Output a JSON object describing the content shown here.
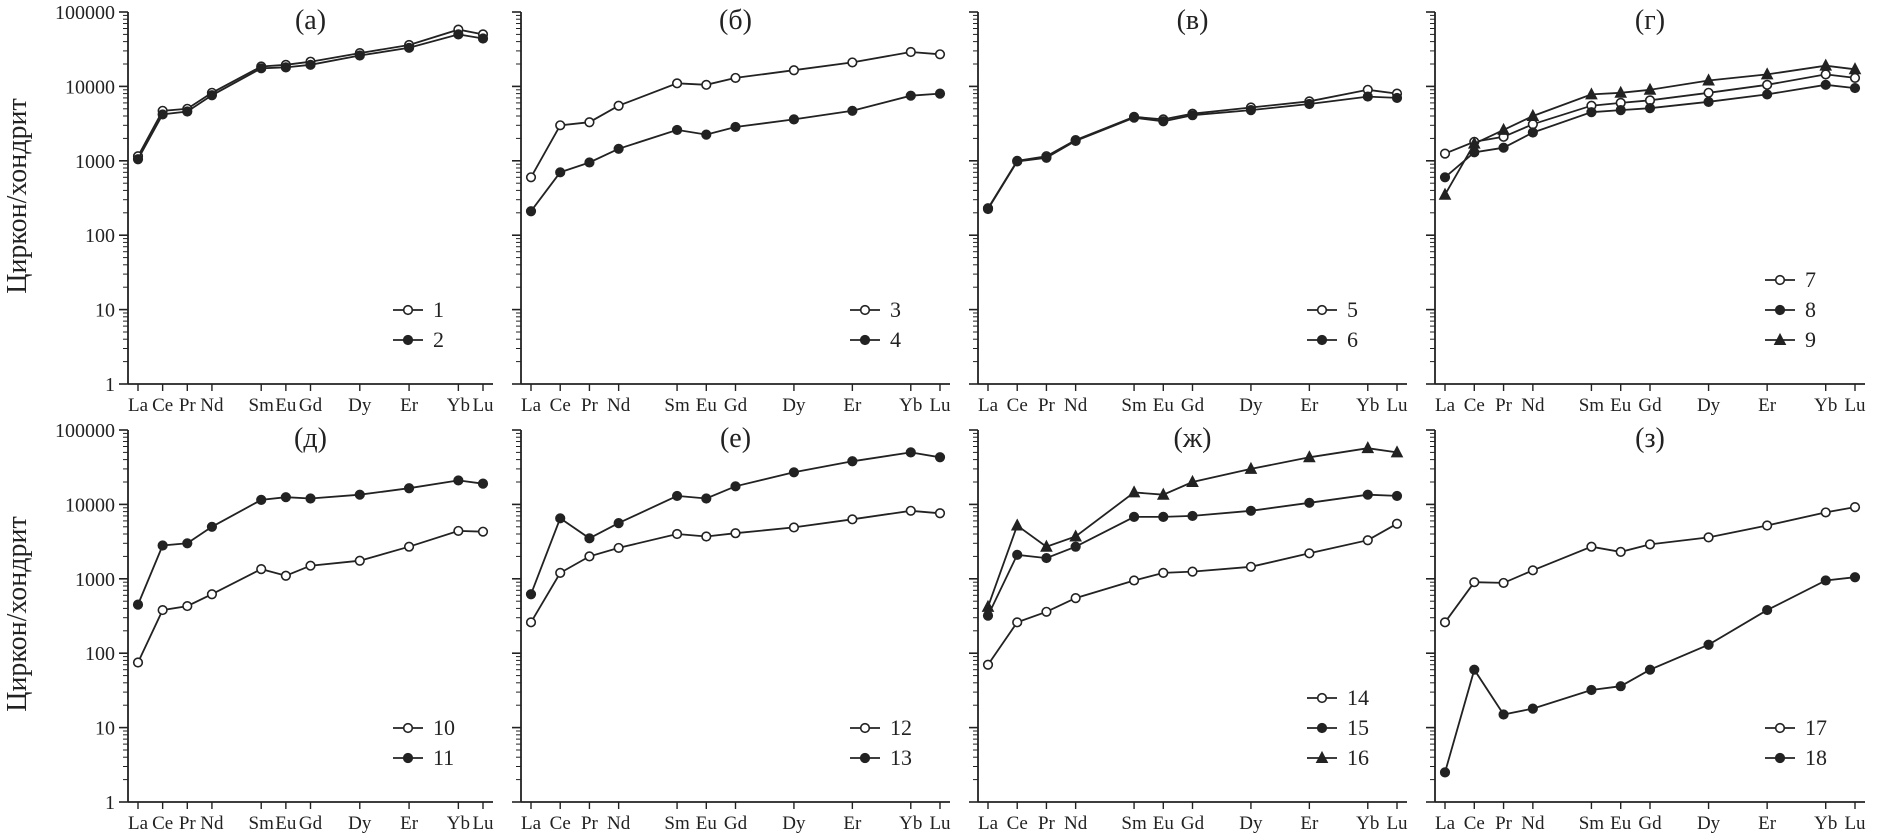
{
  "figure": {
    "ylabel": "Циркон/хондрит",
    "ylim": [
      1,
      100000
    ],
    "yscale": "log",
    "y_ticks": [
      "1",
      "10",
      "100",
      "1000",
      "10000",
      "100000"
    ],
    "x_categories": [
      "La",
      "Ce",
      "Pr",
      "Nd",
      "Sm",
      "Eu",
      "Gd",
      "Dy",
      "Er",
      "Yb",
      "Lu"
    ],
    "x_positions": [
      57,
      58,
      59,
      60,
      62,
      63,
      64,
      66,
      68,
      70,
      71
    ],
    "line_color": "#222222",
    "grid": "off",
    "legend_position": "bottom-right"
  },
  "chart_data": [
    {
      "type": "line",
      "panel": "(а)",
      "yscale": "log",
      "series": [
        {
          "name": "1",
          "marker": "open-circle",
          "values": [
            1150,
            4700,
            5000,
            8200,
            18500,
            19500,
            21500,
            28000,
            36000,
            58000,
            50000
          ]
        },
        {
          "name": "2",
          "marker": "filled-circle",
          "values": [
            1050,
            4200,
            4600,
            7600,
            17500,
            18000,
            19500,
            26000,
            33000,
            50000,
            44000
          ]
        }
      ]
    },
    {
      "type": "line",
      "panel": "(б)",
      "yscale": "log",
      "series": [
        {
          "name": "3",
          "marker": "open-circle",
          "values": [
            600,
            3000,
            3300,
            5500,
            11000,
            10500,
            13000,
            16500,
            21000,
            29000,
            27000
          ]
        },
        {
          "name": "4",
          "marker": "filled-circle",
          "values": [
            210,
            700,
            950,
            1450,
            2600,
            2250,
            2850,
            3600,
            4700,
            7500,
            8000
          ]
        }
      ]
    },
    {
      "type": "line",
      "panel": "(в)",
      "yscale": "log",
      "series": [
        {
          "name": "5",
          "marker": "open-circle",
          "values": [
            230,
            1000,
            1150,
            1900,
            3900,
            3600,
            4300,
            5200,
            6300,
            9000,
            8000
          ]
        },
        {
          "name": "6",
          "marker": "filled-circle",
          "values": [
            225,
            980,
            1100,
            1850,
            3800,
            3400,
            4100,
            4800,
            5800,
            7300,
            7000
          ]
        }
      ]
    },
    {
      "type": "line",
      "panel": "(г)",
      "yscale": "log",
      "series": [
        {
          "name": "7",
          "marker": "open-circle",
          "values": [
            1250,
            1800,
            2100,
            3100,
            5500,
            6000,
            6500,
            8200,
            10500,
            14500,
            13000
          ]
        },
        {
          "name": "8",
          "marker": "filled-circle",
          "values": [
            600,
            1300,
            1500,
            2400,
            4500,
            4800,
            5100,
            6200,
            7800,
            10500,
            9500
          ]
        },
        {
          "name": "9",
          "marker": "filled-triangle",
          "values": [
            350,
            1700,
            2600,
            4000,
            7800,
            8200,
            9000,
            12000,
            14500,
            19000,
            17000
          ]
        }
      ]
    },
    {
      "type": "line",
      "panel": "(д)",
      "yscale": "log",
      "series": [
        {
          "name": "10",
          "marker": "open-circle",
          "values": [
            75,
            380,
            430,
            620,
            1350,
            1100,
            1500,
            1750,
            2700,
            4400,
            4300
          ]
        },
        {
          "name": "11",
          "marker": "filled-circle",
          "values": [
            450,
            2800,
            3000,
            5000,
            11500,
            12500,
            12000,
            13500,
            16500,
            21000,
            19000
          ]
        }
      ]
    },
    {
      "type": "line",
      "panel": "(е)",
      "yscale": "log",
      "series": [
        {
          "name": "12",
          "marker": "open-circle",
          "values": [
            260,
            1200,
            2000,
            2600,
            4000,
            3700,
            4100,
            4900,
            6300,
            8200,
            7600
          ]
        },
        {
          "name": "13",
          "marker": "filled-circle",
          "values": [
            620,
            6500,
            3500,
            5600,
            13000,
            12000,
            17500,
            27000,
            38000,
            50000,
            43000
          ]
        }
      ]
    },
    {
      "type": "line",
      "panel": "(ж)",
      "yscale": "log",
      "series": [
        {
          "name": "14",
          "marker": "open-circle",
          "values": [
            70,
            260,
            360,
            550,
            950,
            1200,
            1250,
            1450,
            2200,
            3300,
            5500
          ]
        },
        {
          "name": "15",
          "marker": "filled-circle",
          "values": [
            320,
            2100,
            1900,
            2700,
            6800,
            6800,
            7000,
            8200,
            10500,
            13500,
            13000
          ]
        },
        {
          "name": "16",
          "marker": "filled-triangle",
          "values": [
            420,
            5200,
            2700,
            3700,
            14500,
            13500,
            20000,
            30000,
            43000,
            57000,
            50000
          ]
        }
      ]
    },
    {
      "type": "line",
      "panel": "(з)",
      "yscale": "log",
      "series": [
        {
          "name": "17",
          "marker": "open-circle",
          "values": [
            260,
            900,
            880,
            1300,
            2700,
            2300,
            2900,
            3600,
            5200,
            7800,
            9200
          ]
        },
        {
          "name": "18",
          "marker": "filled-circle",
          "values": [
            2.5,
            60,
            15,
            18,
            32,
            36,
            60,
            130,
            380,
            950,
            1050
          ]
        }
      ]
    }
  ]
}
